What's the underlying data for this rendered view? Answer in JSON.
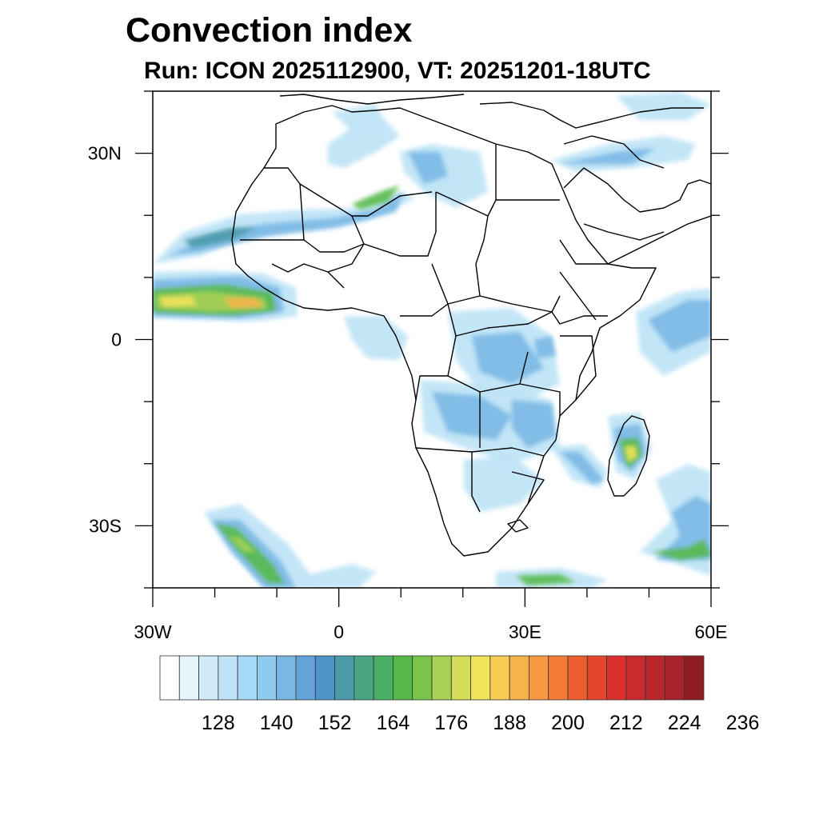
{
  "title": "Convection index",
  "subtitle": "Run: ICON 2025112900,  VT: 20251201-18UTC",
  "axes": {
    "x_ticks": [
      {
        "value": -30,
        "label": "30W"
      },
      {
        "value": 0,
        "label": "0"
      },
      {
        "value": 30,
        "label": "30E"
      },
      {
        "value": 60,
        "label": "60E"
      }
    ],
    "y_ticks": [
      {
        "value": 30,
        "label": "30N"
      },
      {
        "value": 0,
        "label": "0"
      },
      {
        "value": -30,
        "label": "30S"
      }
    ],
    "lon_range": [
      -30,
      60
    ],
    "lat_range": [
      -40,
      40
    ]
  },
  "colorbar": {
    "colors": [
      "#ffffff",
      "#e8f4fb",
      "#d2ebf8",
      "#bde3f6",
      "#a6daf4",
      "#8ecbed",
      "#7ab8e4",
      "#62a3d9",
      "#4d93c8",
      "#4a9aa8",
      "#4aa581",
      "#48b064",
      "#55b94a",
      "#7cc54c",
      "#a8d155",
      "#d2de58",
      "#f1e35a",
      "#f7cd55",
      "#f6b34b",
      "#f69940",
      "#f27c35",
      "#ec5e2f",
      "#e4462c",
      "#dc2f2e",
      "#c82a2e",
      "#b8262c",
      "#a8222a",
      "#8f1c21"
    ],
    "labels": [
      "128",
      "140",
      "152",
      "164",
      "176",
      "188",
      "200",
      "212",
      "224",
      "236"
    ]
  },
  "field_colors": {
    "light": "#bde3f6",
    "mid": "#7ab8e4",
    "blue": "#4d93c8",
    "teal": "#4a9aa8",
    "green": "#55b94a",
    "yellowgreen": "#a8d155",
    "yellow": "#f1e35a",
    "orange": "#f6b34b"
  }
}
